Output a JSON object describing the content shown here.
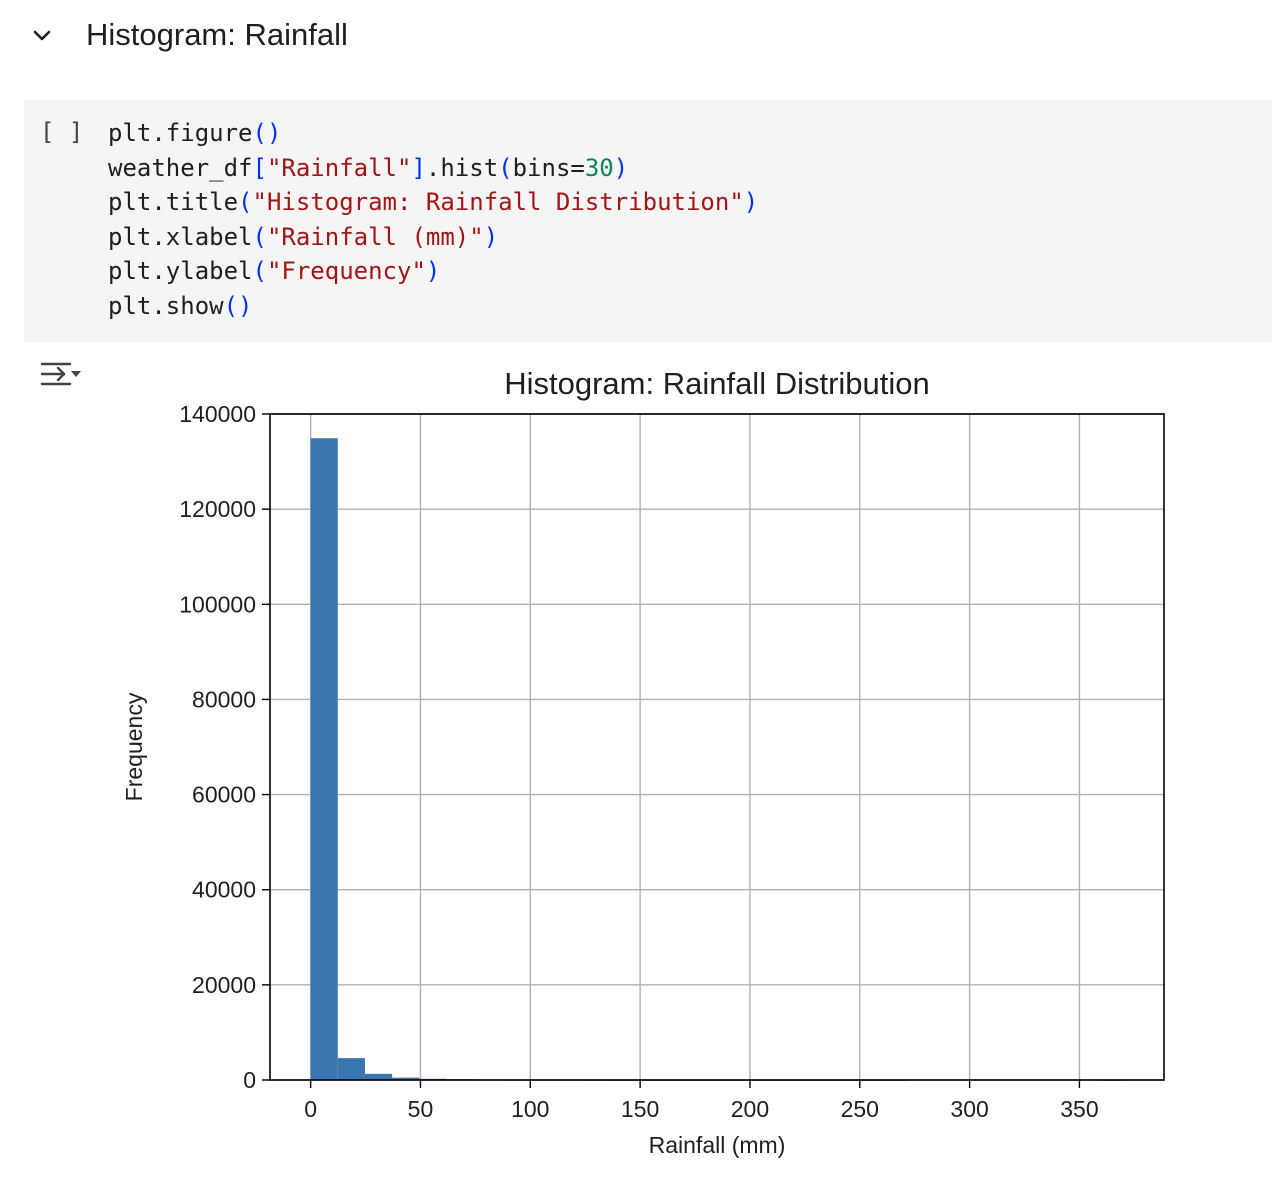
{
  "section": {
    "title": "Histogram: Rainfall",
    "toggle_icon": "chevron-down-icon"
  },
  "code_cell": {
    "run_indicator": "[ ]",
    "lines": [
      [
        {
          "t": "plt.figure",
          "c": "plain"
        },
        {
          "t": "()",
          "c": "paren"
        }
      ],
      [
        {
          "t": "weather_df",
          "c": "plain"
        },
        {
          "t": "[",
          "c": "paren"
        },
        {
          "t": "\"Rainfall\"",
          "c": "str"
        },
        {
          "t": "]",
          "c": "paren"
        },
        {
          "t": ".hist",
          "c": "plain"
        },
        {
          "t": "(",
          "c": "paren"
        },
        {
          "t": "bins=",
          "c": "plain"
        },
        {
          "t": "30",
          "c": "num"
        },
        {
          "t": ")",
          "c": "paren"
        }
      ],
      [
        {
          "t": "plt.title",
          "c": "plain"
        },
        {
          "t": "(",
          "c": "paren"
        },
        {
          "t": "\"Histogram: Rainfall Distribution\"",
          "c": "str"
        },
        {
          "t": ")",
          "c": "paren"
        }
      ],
      [
        {
          "t": "plt.xlabel",
          "c": "plain"
        },
        {
          "t": "(",
          "c": "paren"
        },
        {
          "t": "\"Rainfall (mm)\"",
          "c": "str"
        },
        {
          "t": ")",
          "c": "paren"
        }
      ],
      [
        {
          "t": "plt.ylabel",
          "c": "plain"
        },
        {
          "t": "(",
          "c": "paren"
        },
        {
          "t": "\"Frequency\"",
          "c": "str"
        },
        {
          "t": ")",
          "c": "paren"
        }
      ],
      [
        {
          "t": "plt.show",
          "c": "plain"
        },
        {
          "t": "()",
          "c": "paren"
        }
      ]
    ]
  },
  "output": {
    "toggle_icon": "output-toggle-icon"
  },
  "colors": {
    "bar": "#3a75b0",
    "grid": "#b0b0b0",
    "string": "#a31515",
    "number": "#098658",
    "paren": "#0431fa"
  },
  "chart_data": {
    "type": "bar",
    "title": "Histogram: Rainfall Distribution",
    "xlabel": "Rainfall (mm)",
    "ylabel": "Frequency",
    "xlim": [
      -18.5,
      388.5
    ],
    "ylim": [
      0,
      140000
    ],
    "xticks": [
      0,
      50,
      100,
      150,
      200,
      250,
      300,
      350
    ],
    "yticks": [
      0,
      20000,
      40000,
      60000,
      80000,
      100000,
      120000,
      140000
    ],
    "grid": true,
    "bin_edges": [
      0,
      12.37,
      24.73,
      37.1,
      49.47,
      61.83,
      74.2,
      86.57,
      98.93,
      111.3,
      123.67,
      136.03,
      148.4,
      160.77,
      173.13,
      185.5,
      197.87,
      210.23,
      222.6,
      234.97,
      247.33,
      259.7,
      272.07,
      284.43,
      296.8,
      309.17,
      321.53,
      333.9,
      346.27,
      358.63,
      371.0
    ],
    "counts": [
      134900,
      4600,
      1300,
      500,
      250,
      150,
      90,
      50,
      30,
      20,
      12,
      8,
      6,
      4,
      3,
      2,
      2,
      1,
      1,
      1,
      1,
      1,
      0,
      0,
      0,
      0,
      0,
      0,
      0,
      1
    ]
  }
}
